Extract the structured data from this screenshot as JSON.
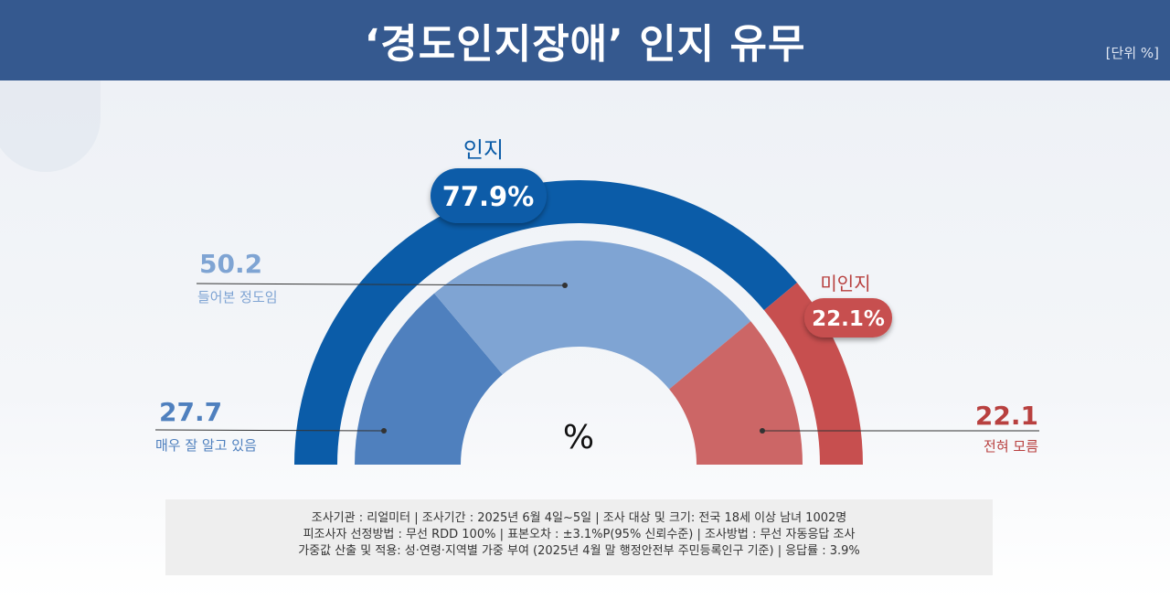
{
  "header": {
    "title": "‘경도인지장애’ 인지 유무",
    "unit": "[단위 %]"
  },
  "center_label": "%",
  "groups": {
    "aware": {
      "label": "인지",
      "value": "77.9%",
      "color": "#0b5ca8"
    },
    "unaware": {
      "label": "미인지",
      "value": "22.1%",
      "color": "#c74f4f"
    }
  },
  "callouts": [
    {
      "value": "50.2",
      "label": "들어본 정도임"
    },
    {
      "value": "27.7",
      "label": "매우 잘 알고 있음"
    },
    {
      "value": "22.1",
      "label": "전혀 모름"
    }
  ],
  "chart_data": {
    "type": "pie",
    "style": "semi-donut",
    "outer_ring": [
      {
        "name": "인지",
        "value": 77.9,
        "color": "#0b5ca8"
      },
      {
        "name": "미인지",
        "value": 22.1,
        "color": "#c74f4f"
      }
    ],
    "inner_ring": [
      {
        "name": "매우 잘 알고 있음",
        "value": 27.7,
        "color": "#4f80be"
      },
      {
        "name": "들어본 정도임",
        "value": 50.2,
        "color": "#7fa4d3"
      },
      {
        "name": "전혀 모름",
        "value": 22.1,
        "color": "#cc6666"
      }
    ]
  },
  "survey_info": [
    "조사기관 : 리얼미터  |  조사기간 : 2025년 6월 4일~5일 | 조사 대상 및 크기: 전국 18세 이상 남녀 1002명",
    "피조사자 선정방법 : 무선 RDD 100% | 표본오차 : ±3.1%P(95%  신뢰수준) | 조사방법 : 무선 자동응답 조사",
    "가중값 산출 및 적용: 성·연령·지역별  가중 부여 (2025년 4월 말 행정안전부  주민등록인구  기준) | 응답률 : 3.9%"
  ]
}
